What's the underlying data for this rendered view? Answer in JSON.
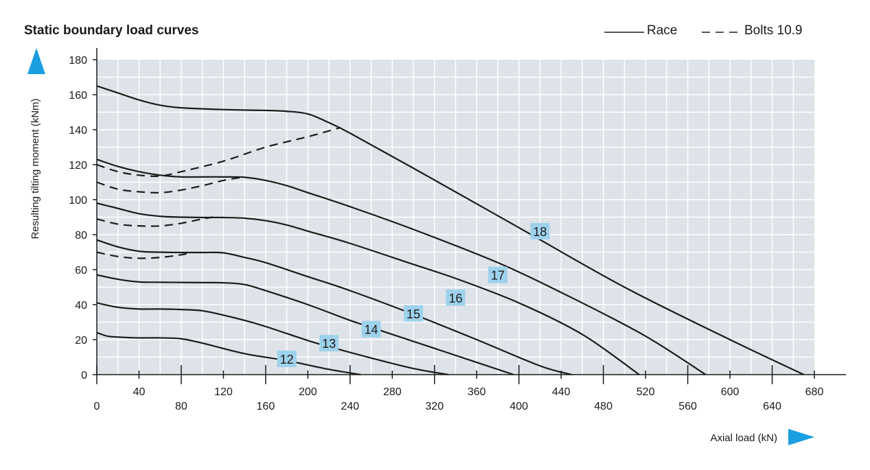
{
  "chart_data": {
    "type": "line",
    "title": "Static boundary load curves",
    "xlabel": "Axial load (kN)",
    "ylabel": "Resulting tilting moment (kNm)",
    "xlim": [
      0,
      680
    ],
    "ylim": [
      0,
      180
    ],
    "x_ticks_top": [
      "40",
      "120",
      "200",
      "280",
      "360",
      "440",
      "520",
      "600",
      "680"
    ],
    "x_ticks_bottom": [
      "0",
      "80",
      "160",
      "240",
      "320",
      "400",
      "480",
      "560",
      "640"
    ],
    "y_ticks": [
      "0",
      "20",
      "40",
      "60",
      "80",
      "100",
      "120",
      "140",
      "160",
      "180"
    ],
    "grid": true,
    "legend": {
      "position": "top-right",
      "race": "Race",
      "bolts": "Bolts 10.9"
    },
    "colors": {
      "plot_bg": "#dde3e8",
      "grid": "#ffffff",
      "line": "#1a1a1a",
      "label_bg": "#9ed2ec",
      "arrow": "#1a9fe0"
    },
    "series": [
      {
        "name": "18",
        "style": "solid",
        "x": [
          0,
          20,
          40,
          60,
          80,
          120,
          160,
          180,
          200,
          220,
          240,
          300,
          400,
          500,
          600,
          670
        ],
        "y": [
          165,
          161,
          157,
          154,
          152.5,
          151.5,
          151,
          150.5,
          149,
          144,
          138,
          118,
          84,
          50,
          20,
          0
        ],
        "label_at": [
          420,
          82
        ]
      },
      {
        "name": "17",
        "style": "solid",
        "x": [
          0,
          20,
          40,
          60,
          80,
          100,
          120,
          140,
          160,
          180,
          200,
          240,
          300,
          380,
          450,
          520,
          577
        ],
        "y": [
          123,
          119,
          116,
          114,
          113,
          113,
          113,
          112.8,
          111,
          108,
          104,
          96,
          83,
          64,
          44,
          22,
          0
        ],
        "label_at": [
          380,
          57
        ]
      },
      {
        "name": "16",
        "style": "solid",
        "x": [
          0,
          20,
          40,
          60,
          80,
          100,
          120,
          140,
          160,
          180,
          200,
          240,
          300,
          340,
          400,
          460,
          514
        ],
        "y": [
          98,
          95,
          92,
          90.5,
          90,
          89.8,
          89.8,
          89.4,
          88,
          85.5,
          82,
          75,
          63,
          55,
          41,
          23,
          0
        ],
        "label_at": [
          340,
          44
        ]
      },
      {
        "name": "15",
        "style": "solid",
        "x": [
          0,
          20,
          40,
          60,
          80,
          100,
          120,
          140,
          160,
          200,
          240,
          300,
          360,
          420,
          450
        ],
        "y": [
          77,
          73,
          70.5,
          70,
          69.8,
          69.8,
          69.6,
          67,
          64,
          56,
          48,
          34.5,
          20,
          5,
          0
        ],
        "label_at": [
          300,
          35
        ]
      },
      {
        "name": "14",
        "style": "solid",
        "x": [
          0,
          20,
          40,
          60,
          80,
          100,
          120,
          140,
          160,
          200,
          240,
          260,
          300,
          360,
          395
        ],
        "y": [
          57,
          54.5,
          53,
          52.8,
          52.7,
          52.6,
          52.5,
          51.5,
          48,
          40,
          31,
          27,
          19,
          7,
          0
        ],
        "label_at": [
          260,
          26
        ]
      },
      {
        "name": "13",
        "style": "solid",
        "x": [
          0,
          20,
          40,
          60,
          80,
          100,
          120,
          140,
          160,
          200,
          220,
          260,
          300,
          333
        ],
        "y": [
          41,
          38.5,
          37.5,
          37.5,
          37.2,
          36.5,
          34,
          31,
          27.5,
          19.5,
          16,
          9.5,
          3.5,
          0
        ],
        "label_at": [
          220,
          18
        ]
      },
      {
        "name": "12",
        "style": "solid",
        "x": [
          0,
          10,
          20,
          40,
          60,
          80,
          100,
          140,
          180,
          220,
          250
        ],
        "y": [
          24,
          22,
          21.5,
          21,
          21,
          20.5,
          18,
          12,
          8,
          3,
          0
        ],
        "label_at": [
          180,
          9
        ]
      },
      {
        "name": "",
        "style": "dashed",
        "x": [
          0,
          20,
          40,
          60,
          80,
          120,
          160,
          200,
          230
        ],
        "y": [
          120,
          116,
          114,
          113.5,
          116,
          122,
          130,
          136,
          141
        ]
      },
      {
        "name": "",
        "style": "dashed",
        "x": [
          0,
          20,
          40,
          60,
          80,
          100,
          120,
          140
        ],
        "y": [
          110,
          106,
          104.5,
          104,
          105.5,
          108,
          111,
          113
        ]
      },
      {
        "name": "",
        "style": "dashed",
        "x": [
          0,
          20,
          40,
          60,
          80,
          100,
          110
        ],
        "y": [
          89,
          86,
          85,
          85,
          86.5,
          89,
          90
        ]
      },
      {
        "name": "",
        "style": "dashed",
        "x": [
          0,
          20,
          40,
          60,
          80,
          90
        ],
        "y": [
          70,
          67.5,
          66.5,
          67,
          68.5,
          70
        ]
      }
    ]
  }
}
